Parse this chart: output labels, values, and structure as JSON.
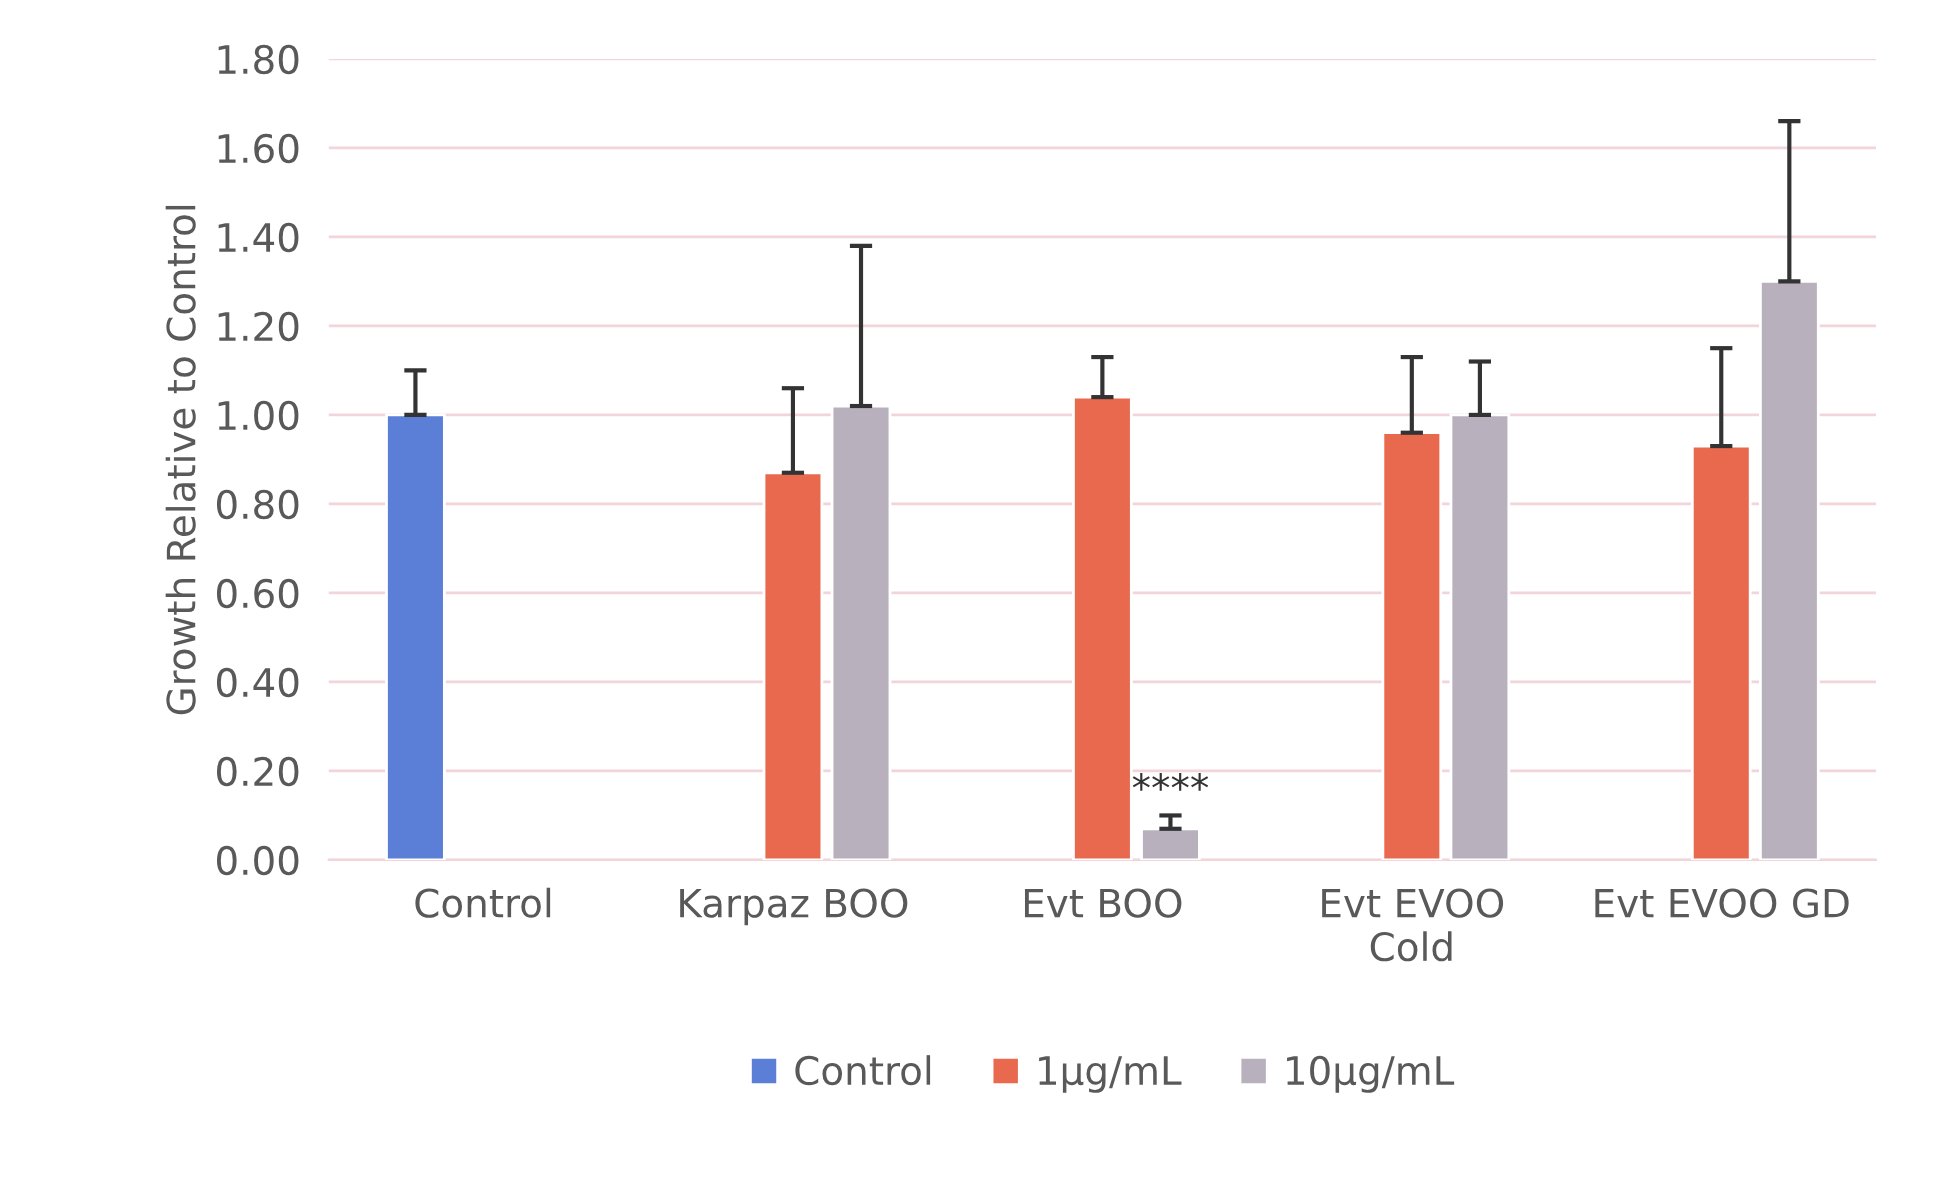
{
  "chart_data": {
    "type": "bar",
    "ylabel": "Growth Relative to Control",
    "categories": [
      "Control",
      "Karpaz BOO",
      "Evt BOO",
      "Evt EVOO\nCold",
      "Evt EVOO GD"
    ],
    "series": [
      {
        "name": "Control",
        "color": "#5b7fd6",
        "values": [
          1.0,
          null,
          null,
          null,
          null
        ],
        "errors": [
          [
            1.0,
            1.1
          ],
          null,
          null,
          null,
          null
        ]
      },
      {
        "name": "1µg/mL",
        "color": "#e9694e",
        "values": [
          null,
          0.87,
          1.04,
          0.96,
          0.93
        ],
        "errors": [
          null,
          [
            0.87,
            1.06
          ],
          [
            1.04,
            1.13
          ],
          [
            0.96,
            1.13
          ],
          [
            0.93,
            1.15
          ]
        ]
      },
      {
        "name": "10µg/mL",
        "color": "#b8b0bc",
        "values": [
          null,
          1.02,
          0.07,
          1.0,
          1.3
        ],
        "errors": [
          null,
          [
            1.02,
            1.38
          ],
          [
            0.07,
            0.1
          ],
          [
            1.0,
            1.12
          ],
          [
            1.3,
            1.66
          ]
        ]
      }
    ],
    "ylim": [
      0,
      1.8
    ],
    "yticks": [
      {
        "value": 0,
        "label": "0.00"
      },
      {
        "value": 0.2,
        "label": "0.20"
      },
      {
        "value": 0.4,
        "label": "0.40"
      },
      {
        "value": 0.6,
        "label": "0.60"
      },
      {
        "value": 0.8,
        "label": "0.80"
      },
      {
        "value": 1.0,
        "label": "1.00"
      },
      {
        "value": 1.2,
        "label": "1.20"
      },
      {
        "value": 1.4,
        "label": "1.40"
      },
      {
        "value": 1.6,
        "label": "1.60"
      },
      {
        "value": 1.8,
        "label": "1.80"
      }
    ],
    "annotations": [
      "****"
    ],
    "grid": "y",
    "legend": "bottom"
  }
}
